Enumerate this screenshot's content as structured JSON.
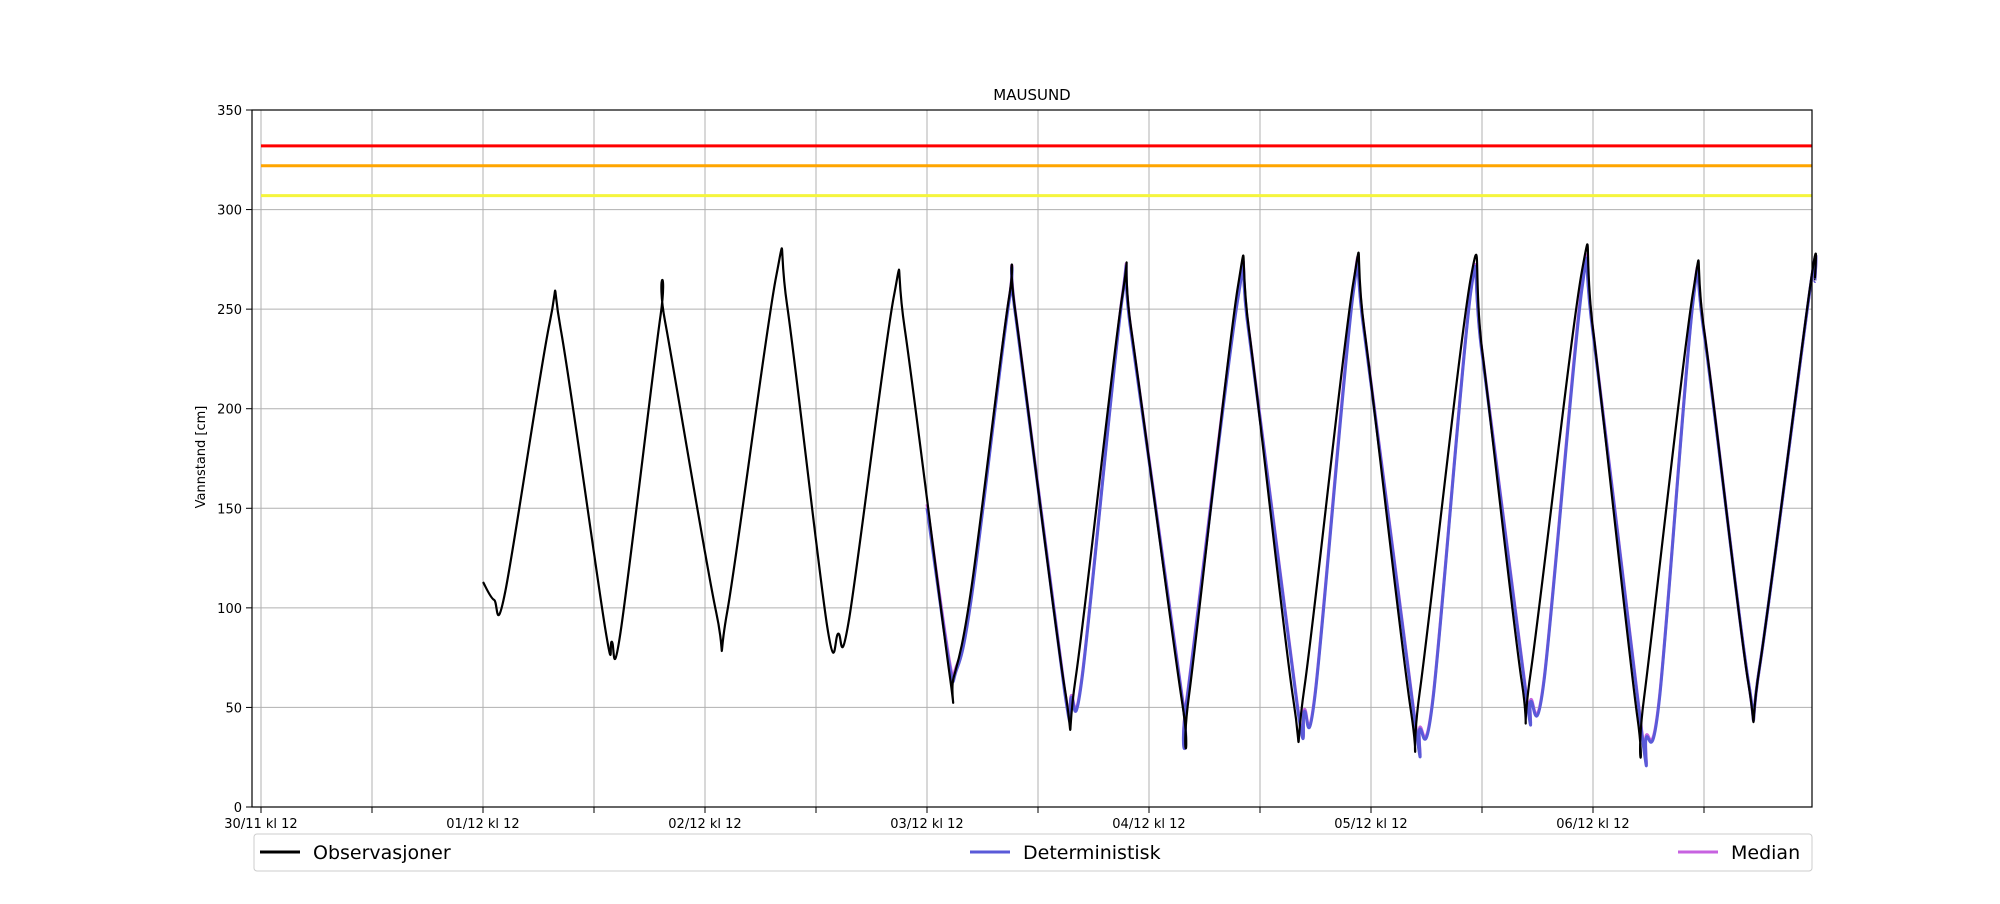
{
  "chart_data": {
    "type": "line",
    "title": "MAUSUND",
    "ylabel": "Vannstand [cm]",
    "xlabel": "",
    "ylim": [
      0,
      350
    ],
    "xlim_days": [
      0,
      7
    ],
    "grid": true,
    "legend_placement": "bottom",
    "x_ticks": [
      {
        "day": 0,
        "label": "30/11 kl 12"
      },
      {
        "day": 0.5,
        "label": ""
      },
      {
        "day": 1,
        "label": "01/12 kl 12"
      },
      {
        "day": 1.5,
        "label": ""
      },
      {
        "day": 2,
        "label": "02/12 kl 12"
      },
      {
        "day": 2.5,
        "label": ""
      },
      {
        "day": 3,
        "label": "03/12 kl 12"
      },
      {
        "day": 3.5,
        "label": ""
      },
      {
        "day": 4,
        "label": "04/12 kl 12"
      },
      {
        "day": 4.5,
        "label": ""
      },
      {
        "day": 5,
        "label": "05/12 kl 12"
      },
      {
        "day": 5.5,
        "label": ""
      },
      {
        "day": 6,
        "label": "06/12 kl 12"
      },
      {
        "day": 6.5,
        "label": ""
      }
    ],
    "y_ticks": [
      0,
      50,
      100,
      150,
      200,
      250,
      300,
      350
    ],
    "threshold_lines": [
      {
        "value": 332,
        "color": "#ff0000"
      },
      {
        "value": 322,
        "color": "#ffa500"
      },
      {
        "value": 307,
        "color": "#f5f53d"
      }
    ],
    "series": [
      {
        "name": "Observasjoner",
        "color": "#000000",
        "points": [
          [
            1.0,
            113
          ],
          [
            1.05,
            104
          ],
          [
            1.1,
            108
          ],
          [
            1.3,
            243
          ],
          [
            1.35,
            240
          ],
          [
            1.55,
            90
          ],
          [
            1.58,
            83
          ],
          [
            1.62,
            88
          ],
          [
            1.8,
            247
          ],
          [
            1.82,
            244
          ],
          [
            2.05,
            98
          ],
          [
            2.1,
            98
          ],
          [
            2.32,
            266
          ],
          [
            2.37,
            252
          ],
          [
            2.55,
            91
          ],
          [
            2.6,
            87
          ],
          [
            2.65,
            95
          ],
          [
            2.85,
            256
          ],
          [
            2.9,
            240
          ],
          [
            3.1,
            68
          ],
          [
            3.12,
            65
          ],
          [
            3.2,
            110
          ],
          [
            3.37,
            256
          ],
          [
            3.4,
            247
          ],
          [
            3.62,
            60
          ],
          [
            3.67,
            65
          ],
          [
            3.88,
            257
          ],
          [
            3.92,
            240
          ],
          [
            4.15,
            52
          ],
          [
            4.18,
            56
          ],
          [
            4.4,
            261
          ],
          [
            4.45,
            240
          ],
          [
            4.65,
            54
          ],
          [
            4.7,
            60
          ],
          [
            4.92,
            263
          ],
          [
            4.97,
            240
          ],
          [
            5.18,
            48
          ],
          [
            5.22,
            58
          ],
          [
            5.45,
            266
          ],
          [
            5.5,
            230
          ],
          [
            5.68,
            62
          ],
          [
            5.72,
            68
          ],
          [
            5.95,
            269
          ],
          [
            6.0,
            240
          ],
          [
            6.2,
            45
          ],
          [
            6.23,
            55
          ],
          [
            6.45,
            258
          ],
          [
            6.5,
            240
          ],
          [
            6.7,
            62
          ],
          [
            6.75,
            70
          ],
          [
            6.98,
            263
          ],
          [
            7.0,
            265
          ]
        ]
      },
      {
        "name": "Deterministisk",
        "color": "#5a5ad8",
        "points": [
          [
            3.0,
            150
          ],
          [
            3.1,
            72
          ],
          [
            3.13,
            68
          ],
          [
            3.2,
            105
          ],
          [
            3.37,
            254
          ],
          [
            3.4,
            246
          ],
          [
            3.62,
            58
          ],
          [
            3.65,
            55
          ],
          [
            3.7,
            66
          ],
          [
            3.88,
            256
          ],
          [
            3.92,
            238
          ],
          [
            4.15,
            54
          ],
          [
            4.17,
            53
          ],
          [
            4.4,
            255
          ],
          [
            4.45,
            238
          ],
          [
            4.67,
            49
          ],
          [
            4.7,
            48
          ],
          [
            4.75,
            58
          ],
          [
            4.92,
            258
          ],
          [
            4.97,
            238
          ],
          [
            5.2,
            41
          ],
          [
            5.22,
            39
          ],
          [
            5.28,
            55
          ],
          [
            5.45,
            259
          ],
          [
            5.5,
            228
          ],
          [
            5.7,
            55
          ],
          [
            5.72,
            53
          ],
          [
            5.78,
            64
          ],
          [
            5.95,
            260
          ],
          [
            6.0,
            238
          ],
          [
            6.22,
            37
          ],
          [
            6.24,
            35
          ],
          [
            6.3,
            55
          ],
          [
            6.45,
            253
          ],
          [
            6.5,
            238
          ],
          [
            6.7,
            63
          ],
          [
            6.75,
            70
          ],
          [
            6.98,
            262
          ],
          [
            7.0,
            264
          ]
        ]
      },
      {
        "name": "Median",
        "color": "#c762e0",
        "points": [
          [
            3.0,
            152
          ],
          [
            3.1,
            74
          ],
          [
            3.13,
            70
          ],
          [
            3.2,
            106
          ],
          [
            3.37,
            255
          ],
          [
            3.4,
            247
          ],
          [
            3.62,
            59
          ],
          [
            3.65,
            56
          ],
          [
            3.7,
            67
          ],
          [
            3.88,
            257
          ],
          [
            3.92,
            239
          ],
          [
            4.15,
            55
          ],
          [
            4.17,
            54
          ],
          [
            4.4,
            257
          ],
          [
            4.45,
            239
          ],
          [
            4.67,
            50
          ],
          [
            4.7,
            49
          ],
          [
            4.75,
            59
          ],
          [
            4.92,
            260
          ],
          [
            4.97,
            239
          ],
          [
            5.2,
            42
          ],
          [
            5.22,
            40
          ],
          [
            5.28,
            56
          ],
          [
            5.45,
            260
          ],
          [
            5.5,
            229
          ],
          [
            5.7,
            56
          ],
          [
            5.72,
            54
          ],
          [
            5.78,
            65
          ],
          [
            5.95,
            262
          ],
          [
            6.0,
            239
          ],
          [
            6.22,
            38
          ],
          [
            6.24,
            36
          ],
          [
            6.3,
            56
          ],
          [
            6.45,
            254
          ],
          [
            6.5,
            239
          ],
          [
            6.7,
            63
          ],
          [
            6.75,
            70
          ],
          [
            6.98,
            262
          ],
          [
            7.0,
            264
          ]
        ]
      }
    ]
  }
}
